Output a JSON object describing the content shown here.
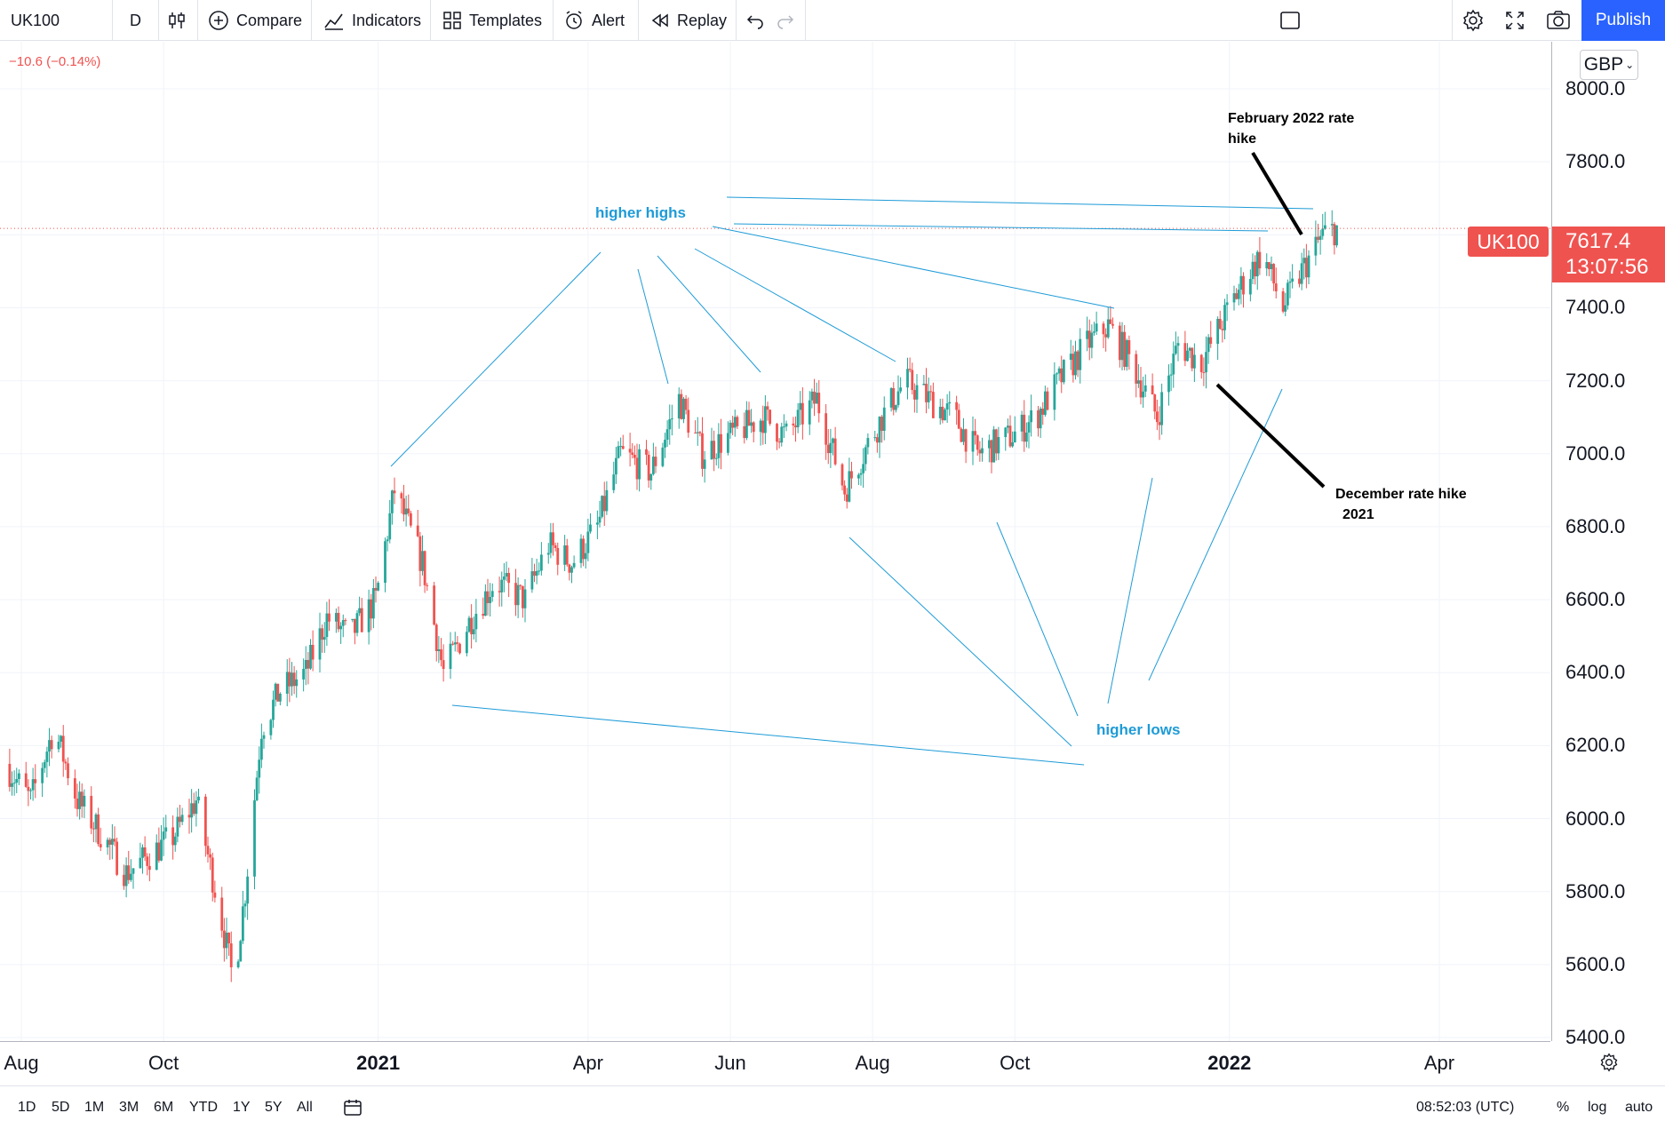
{
  "toolbar": {
    "symbol": "UK100",
    "interval": "D",
    "compare": "Compare",
    "indicators": "Indicators",
    "templates": "Templates",
    "alert": "Alert",
    "replay": "Replay",
    "publish": "Publish"
  },
  "legend": {
    "change": "−10.6 (−0.14%)"
  },
  "currency": "GBP",
  "price_badge": {
    "symbol": "UK100",
    "price": "7617.4",
    "countdown": "13:07:56"
  },
  "bottombar": {
    "ranges": [
      "1D",
      "5D",
      "1M",
      "3M",
      "6M",
      "YTD",
      "1Y",
      "5Y",
      "All"
    ],
    "clock": "08:52:03 (UTC)",
    "percent": "%",
    "log": "log",
    "auto": "auto"
  },
  "annotations": {
    "higher_highs": "higher highs",
    "higher_lows": "higher lows",
    "feb_hike_line1": "February 2022 rate",
    "feb_hike_line2": "hike",
    "dec_hike_line1": "December rate hike",
    "dec_hike_line2": "2021"
  },
  "colors": {
    "up": "#26a69a",
    "down": "#ef5350",
    "accent": "#2962ff",
    "annotation": "#1e9bd7"
  },
  "chart_data": {
    "type": "candlestick",
    "symbol": "UK100",
    "interval": "D",
    "currency": "GBP",
    "y_ticks": [
      "8000.0",
      "7800.0",
      "7600.0",
      "7400.0",
      "7200.0",
      "7000.0",
      "6800.0",
      "6600.0",
      "6400.0",
      "6200.0",
      "6000.0",
      "5800.0",
      "5600.0",
      "5400.0"
    ],
    "ylim": [
      5400,
      8000
    ],
    "x_ticks": [
      {
        "label": "Aug",
        "bold": false
      },
      {
        "label": "Oct",
        "bold": false
      },
      {
        "label": "2021",
        "bold": true
      },
      {
        "label": "Apr",
        "bold": false
      },
      {
        "label": "Jun",
        "bold": false
      },
      {
        "label": "Aug",
        "bold": false
      },
      {
        "label": "Oct",
        "bold": false
      },
      {
        "label": "2022",
        "bold": true
      },
      {
        "label": "Apr",
        "bold": false
      }
    ],
    "last_price": 7617.4,
    "close_path": [
      [
        "2020-07-25",
        6150
      ],
      [
        "2020-08-05",
        6050
      ],
      [
        "2020-08-15",
        6250
      ],
      [
        "2020-08-25",
        6050
      ],
      [
        "2020-09-05",
        5950
      ],
      [
        "2020-09-15",
        5850
      ],
      [
        "2020-09-25",
        5900
      ],
      [
        "2020-10-05",
        5950
      ],
      [
        "2020-10-15",
        6050
      ],
      [
        "2020-10-25",
        5750
      ],
      [
        "2020-10-31",
        5550
      ],
      [
        "2020-11-05",
        5800
      ],
      [
        "2020-11-12",
        6250
      ],
      [
        "2020-11-20",
        6350
      ],
      [
        "2020-12-01",
        6400
      ],
      [
        "2020-12-10",
        6550
      ],
      [
        "2020-12-20",
        6500
      ],
      [
        "2020-12-31",
        6600
      ],
      [
        "2021-01-08",
        6900
      ],
      [
        "2021-01-20",
        6700
      ],
      [
        "2021-01-29",
        6400
      ],
      [
        "2021-02-10",
        6550
      ],
      [
        "2021-02-20",
        6650
      ],
      [
        "2021-03-05",
        6600
      ],
      [
        "2021-03-15",
        6750
      ],
      [
        "2021-03-25",
        6700
      ],
      [
        "2021-04-05",
        6800
      ],
      [
        "2021-04-15",
        7000
      ],
      [
        "2021-04-28",
        6950
      ],
      [
        "2021-05-10",
        7150
      ],
      [
        "2021-05-20",
        7000
      ],
      [
        "2021-06-01",
        7050
      ],
      [
        "2021-06-15",
        7100
      ],
      [
        "2021-06-25",
        7050
      ],
      [
        "2021-07-08",
        7150
      ],
      [
        "2021-07-20",
        6900
      ],
      [
        "2021-08-05",
        7100
      ],
      [
        "2021-08-15",
        7200
      ],
      [
        "2021-08-25",
        7150
      ],
      [
        "2021-09-05",
        7100
      ],
      [
        "2021-09-15",
        7000
      ],
      [
        "2021-09-30",
        7050
      ],
      [
        "2021-10-10",
        7100
      ],
      [
        "2021-10-20",
        7200
      ],
      [
        "2021-11-01",
        7300
      ],
      [
        "2021-11-10",
        7350
      ],
      [
        "2021-11-20",
        7250
      ],
      [
        "2021-12-01",
        7100
      ],
      [
        "2021-12-10",
        7300
      ],
      [
        "2021-12-20",
        7250
      ],
      [
        "2022-01-05",
        7450
      ],
      [
        "2022-01-15",
        7550
      ],
      [
        "2022-01-24",
        7400
      ],
      [
        "2022-02-01",
        7500
      ],
      [
        "2022-02-10",
        7600
      ],
      [
        "2022-02-16",
        7617.4
      ]
    ]
  }
}
